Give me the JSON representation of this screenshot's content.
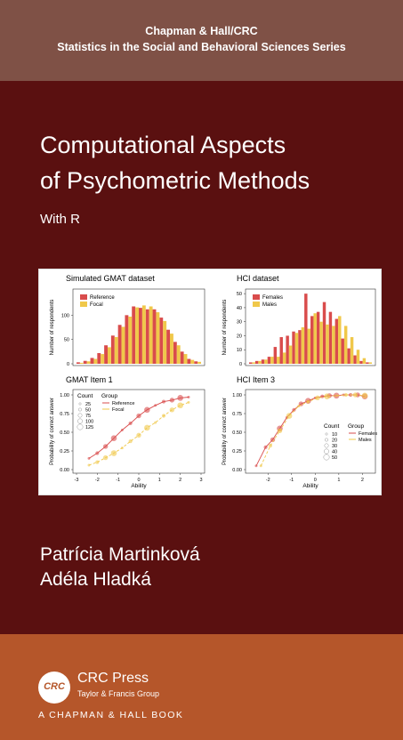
{
  "series": {
    "line1": "Chapman & Hall/CRC",
    "line2": "Statistics in the Social and Behavioral Sciences Series"
  },
  "book": {
    "title_line1": "Computational Aspects",
    "title_line2": "of Psychometric Methods",
    "subtitle": "With R"
  },
  "authors": [
    "Patrícia Martinková",
    "Adéla Hladká"
  ],
  "publisher": {
    "logo_text": "CRC",
    "name": "CRC Press",
    "group": "Taylor & Francis Group",
    "imprint": "A CHAPMAN & HALL BOOK"
  },
  "colors": {
    "series_band": "#7f5146",
    "main_band": "#5a1010",
    "bottom_band": "#b5562a",
    "red_series": "#d94c4c",
    "yellow_series": "#f0c84a"
  },
  "chart_data": [
    {
      "type": "bar",
      "title": "Simulated GMAT dataset",
      "xlabel": "",
      "ylabel": "Number of respondents",
      "yticks": [
        "0",
        "50",
        "100"
      ],
      "ylim": [
        0,
        150
      ],
      "legend_position": "top-left",
      "series": [
        {
          "name": "Reference",
          "values": [
            3,
            6,
            12,
            22,
            38,
            58,
            80,
            100,
            118,
            115,
            112,
            112,
            95,
            70,
            45,
            25,
            10,
            5
          ]
        },
        {
          "name": "Focal",
          "values": [
            2,
            5,
            10,
            20,
            34,
            55,
            76,
            97,
            116,
            120,
            118,
            106,
            88,
            62,
            38,
            20,
            8,
            4
          ]
        }
      ]
    },
    {
      "type": "bar",
      "title": "HCI dataset",
      "xlabel": "",
      "ylabel": "Number of respondents",
      "yticks": [
        "0",
        "10",
        "20",
        "30",
        "40",
        "50"
      ],
      "ylim": [
        0,
        52
      ],
      "legend_position": "top-left",
      "series": [
        {
          "name": "Females",
          "values": [
            1,
            2,
            3,
            5,
            12,
            19,
            20,
            23,
            24,
            50,
            34,
            37,
            44,
            37,
            32,
            18,
            11,
            6,
            2,
            1
          ]
        },
        {
          "name": "Males",
          "values": [
            1,
            2,
            3,
            5,
            5,
            8,
            13,
            22,
            26,
            25,
            36,
            30,
            28,
            27,
            34,
            27,
            19,
            10,
            4,
            1
          ]
        }
      ]
    },
    {
      "type": "scatter",
      "title": "GMAT Item 1",
      "xlabel": "Ability",
      "ylabel": "Probability of correct answer",
      "xlim": [
        -3,
        3
      ],
      "ylim": [
        0,
        1
      ],
      "xticks": [
        "-3",
        "-2",
        "-1",
        "0",
        "1",
        "2",
        "3"
      ],
      "yticks": [
        "0.00",
        "0.25",
        "0.50",
        "0.75",
        "1.00"
      ],
      "legend_count_title": "Count",
      "legend_count_values": [
        "25",
        "50",
        "75",
        "100",
        "125"
      ],
      "legend_group_title": "Group",
      "series": [
        {
          "name": "Reference",
          "x": [
            -2.4,
            -2.0,
            -1.6,
            -1.2,
            -0.8,
            -0.4,
            0.0,
            0.4,
            0.8,
            1.2,
            1.6,
            2.0,
            2.4
          ],
          "y": [
            0.15,
            0.22,
            0.31,
            0.42,
            0.53,
            0.62,
            0.72,
            0.8,
            0.86,
            0.91,
            0.93,
            0.96,
            0.97
          ]
        },
        {
          "name": "Focal",
          "x": [
            -2.4,
            -2.0,
            -1.6,
            -1.2,
            -0.8,
            -0.4,
            0.0,
            0.4,
            0.8,
            1.2,
            1.6,
            2.0,
            2.4
          ],
          "y": [
            0.06,
            0.1,
            0.16,
            0.22,
            0.29,
            0.38,
            0.46,
            0.56,
            0.63,
            0.72,
            0.8,
            0.86,
            0.9
          ]
        }
      ]
    },
    {
      "type": "scatter",
      "title": "HCI Item 3",
      "xlabel": "Ability",
      "ylabel": "Probability of correct answer",
      "xlim": [
        -2.8,
        2.4
      ],
      "ylim": [
        0,
        1
      ],
      "xticks": [
        "-2",
        "-1",
        "0",
        "1",
        "2"
      ],
      "yticks": [
        "0.00",
        "0.25",
        "0.50",
        "0.75",
        "1.00"
      ],
      "legend_count_title": "Count",
      "legend_count_values": [
        "10",
        "20",
        "30",
        "40",
        "50"
      ],
      "legend_group_title": "Group",
      "series": [
        {
          "name": "Females",
          "x": [
            -2.5,
            -2.1,
            -1.8,
            -1.5,
            -1.2,
            -0.9,
            -0.6,
            -0.3,
            0.0,
            0.3,
            0.6,
            0.9,
            1.2,
            1.5,
            1.8,
            2.1
          ],
          "y": [
            0.05,
            0.3,
            0.4,
            0.55,
            0.7,
            0.8,
            0.88,
            0.92,
            0.96,
            0.98,
            0.99,
            0.99,
            1.0,
            1.0,
            1.0,
            0.98
          ]
        },
        {
          "name": "Males",
          "x": [
            -2.3,
            -1.9,
            -1.5,
            -1.1,
            -0.7,
            -0.3,
            0.1,
            0.5,
            0.9,
            1.3,
            1.7,
            2.1
          ],
          "y": [
            0.05,
            0.32,
            0.52,
            0.72,
            0.85,
            0.91,
            0.96,
            0.98,
            0.99,
            1.0,
            1.0,
            0.99
          ]
        }
      ]
    }
  ]
}
